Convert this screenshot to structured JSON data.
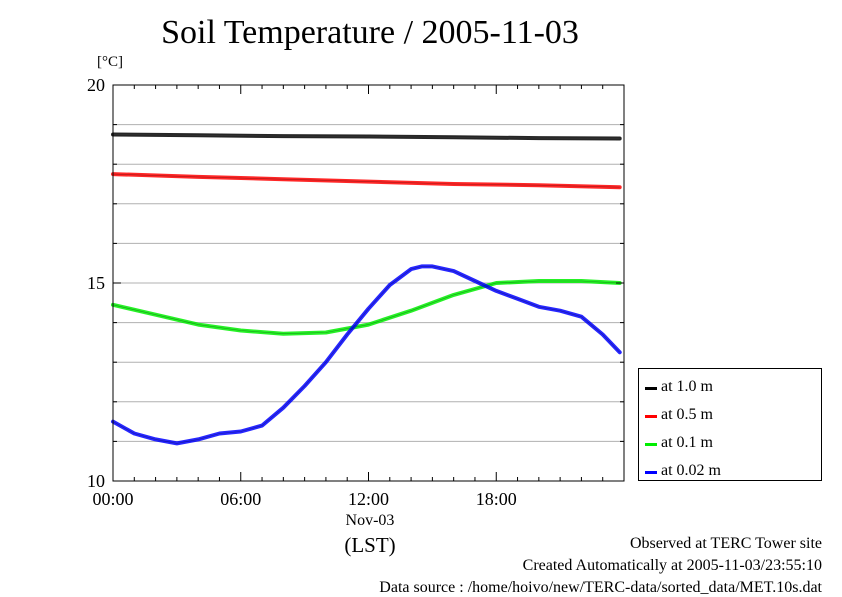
{
  "chart_data": {
    "type": "line",
    "title": "Soil Temperature / 2005-11-03",
    "ylabel": "[°C]",
    "xlabel": "(LST)",
    "x_date_label": "Nov-03",
    "ylim": [
      10,
      20
    ],
    "yticks": [
      "10",
      "15",
      "20"
    ],
    "x_unit": "hours",
    "xlim": [
      0,
      24
    ],
    "xticks": [
      {
        "value": 0,
        "label": "00:00"
      },
      {
        "value": 6,
        "label": "06:00"
      },
      {
        "value": 12,
        "label": "12:00"
      },
      {
        "value": 18,
        "label": "18:00"
      }
    ],
    "grid": true,
    "legend_position": "bottom-right, outside plot",
    "series": [
      {
        "name": "at 1.0 m",
        "color": "#000000",
        "x": [
          0,
          4,
          8,
          12,
          16,
          20,
          23.8
        ],
        "values": [
          18.75,
          18.73,
          18.71,
          18.7,
          18.68,
          18.66,
          18.65
        ]
      },
      {
        "name": "at 0.5 m",
        "color": "#ff0000",
        "x": [
          0,
          4,
          8,
          12,
          16,
          20,
          23.8
        ],
        "values": [
          17.75,
          17.68,
          17.62,
          17.56,
          17.5,
          17.47,
          17.42
        ]
      },
      {
        "name": "at 0.1 m",
        "color": "#00ee00",
        "x": [
          0,
          2,
          4,
          6,
          8,
          10,
          12,
          14,
          16,
          18,
          20,
          22,
          23.8
        ],
        "values": [
          14.45,
          14.2,
          13.95,
          13.8,
          13.72,
          13.75,
          13.95,
          14.3,
          14.7,
          15.0,
          15.05,
          15.05,
          15.0
        ]
      },
      {
        "name": "at 0.02 m",
        "color": "#0000ff",
        "x": [
          0,
          1,
          2,
          3,
          4,
          5,
          6,
          7,
          8,
          9,
          10,
          11,
          12,
          13,
          14,
          14.5,
          15,
          16,
          17,
          18,
          19,
          20,
          21,
          22,
          23,
          23.8
        ],
        "values": [
          11.5,
          11.2,
          11.05,
          10.95,
          11.05,
          11.2,
          11.25,
          11.4,
          11.85,
          12.4,
          13.0,
          13.7,
          14.35,
          14.95,
          15.35,
          15.42,
          15.42,
          15.3,
          15.05,
          14.8,
          14.6,
          14.4,
          14.3,
          14.15,
          13.7,
          13.25
        ]
      }
    ]
  },
  "footer": {
    "line1": "Observed at TERC Tower site",
    "line2": "Created Automatically at 2005-11-03/23:55:10",
    "line3": "Data source : /home/hoivo/new/TERC-data/sorted_data/MET.10s.dat"
  }
}
